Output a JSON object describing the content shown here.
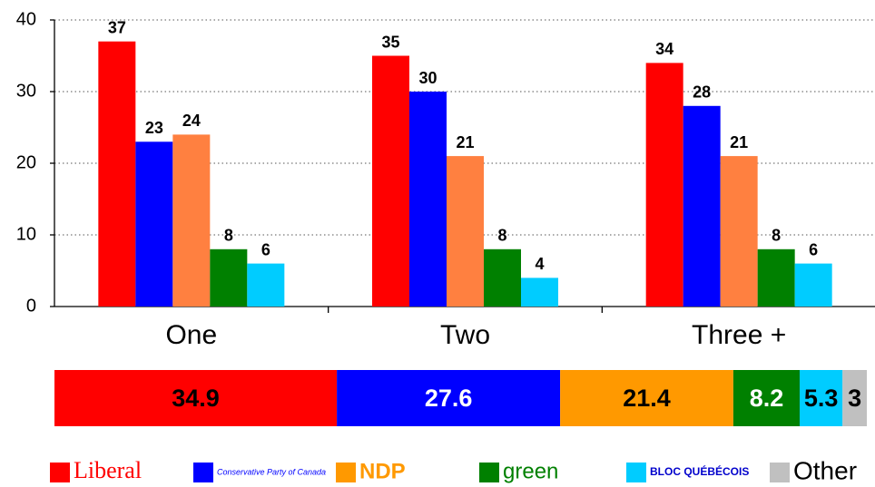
{
  "chart_data": [
    {
      "type": "bar",
      "categories": [
        "One",
        "Two",
        "Three +"
      ],
      "series": [
        {
          "name": "Liberal",
          "color": "#ff0000",
          "values": [
            37,
            35,
            34
          ]
        },
        {
          "name": "Conservative",
          "color": "#0000ff",
          "values": [
            23,
            30,
            28
          ]
        },
        {
          "name": "NDP",
          "color": "#ff8040",
          "values": [
            24,
            21,
            21
          ]
        },
        {
          "name": "Green",
          "color": "#008000",
          "values": [
            8,
            8,
            8
          ]
        },
        {
          "name": "Bloc",
          "color": "#00ccff",
          "values": [
            6,
            4,
            6
          ]
        }
      ],
      "ylim": [
        0,
        40
      ],
      "yticks": [
        0,
        10,
        20,
        30,
        40
      ],
      "grid": true
    },
    {
      "type": "stacked-hbar",
      "series": [
        {
          "name": "Liberal",
          "color": "#ff0000",
          "text_color": "#000000",
          "values": [
            34.9
          ]
        },
        {
          "name": "Conservative Party of Canada",
          "color": "#0000ff",
          "text_color": "#ffffff",
          "values": [
            27.6
          ]
        },
        {
          "name": "NDP",
          "color": "#ff9900",
          "text_color": "#000000",
          "values": [
            21.4
          ]
        },
        {
          "name": "green",
          "color": "#008000",
          "text_color": "#ffffff",
          "values": [
            8.2
          ]
        },
        {
          "name": "BLOC QUÉBÉCOIS",
          "color": "#00ccff",
          "text_color": "#000000",
          "values": [
            5.3
          ]
        },
        {
          "name": "Other",
          "color": "#c0c0c0",
          "text_color": "#000000",
          "values": [
            3
          ]
        }
      ],
      "legend": "bottom"
    }
  ]
}
